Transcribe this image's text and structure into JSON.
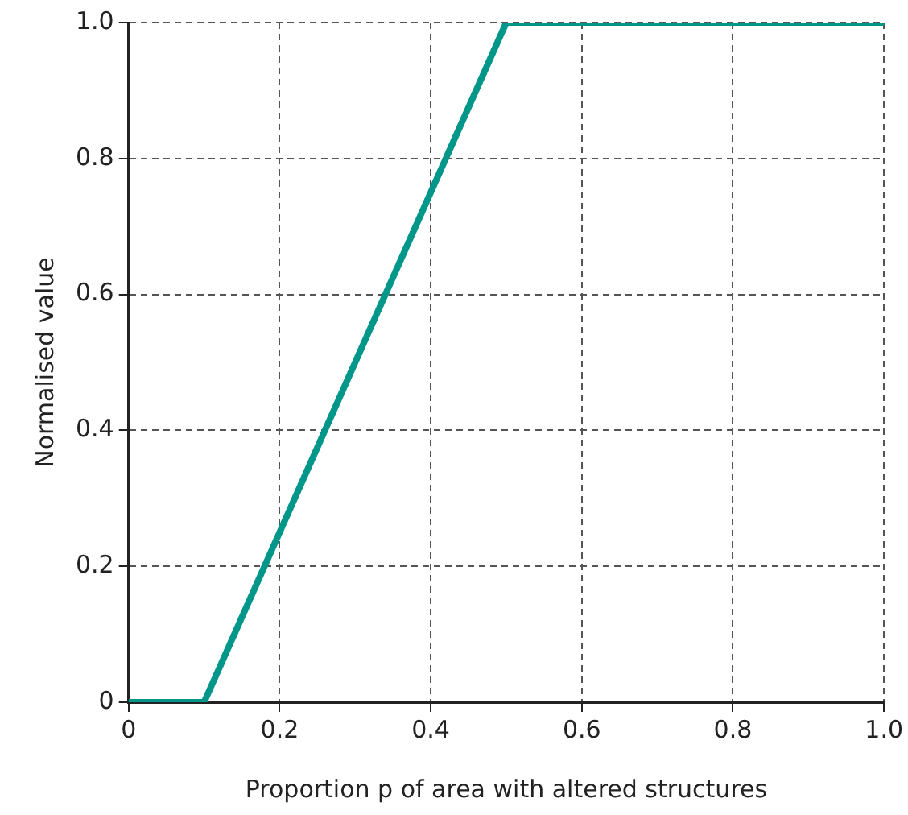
{
  "chart_data": {
    "type": "line",
    "xlabel": "Proportion p of area with altered structures",
    "ylabel": "Normalised value",
    "x": [
      0,
      0.1,
      0.5,
      1
    ],
    "series": [
      {
        "color": "#00968a",
        "values": [
          0,
          0,
          1,
          1
        ]
      }
    ],
    "xlim": [
      0,
      1
    ],
    "ylim": [
      0,
      1
    ],
    "xticks": [
      0,
      0.2,
      0.4,
      0.6,
      0.8,
      {
        "value": 1,
        "label": "1.0"
      }
    ],
    "yticks": [
      0,
      0.2,
      0.4,
      0.6,
      0.8,
      {
        "value": 1,
        "label": "1.0"
      }
    ],
    "grid": true,
    "legend": false,
    "marker": "none",
    "line_style": "solid"
  }
}
